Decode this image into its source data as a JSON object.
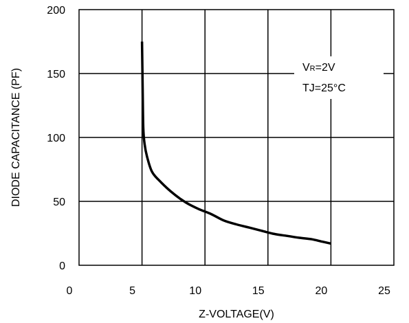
{
  "chart_data": {
    "type": "line",
    "xlabel": "Z-VOLTAGE(V)",
    "ylabel": "DIODE CAPACITANCE (PF)",
    "xlim": [
      0,
      25
    ],
    "ylim": [
      0,
      200
    ],
    "x_ticks": [
      0,
      5,
      10,
      15,
      20,
      25
    ],
    "y_ticks": [
      0,
      50,
      100,
      150,
      200
    ],
    "grid": true,
    "annotation": {
      "line1_main": "V",
      "line1_sub": "R",
      "line1_rest": "=2V",
      "line2": "TJ=25°C"
    },
    "series": [
      {
        "color": "#000000",
        "x": [
          5.0,
          5.05,
          5.1,
          5.2,
          5.4,
          5.8,
          6.5,
          7.5,
          8.5,
          9.5,
          10.5,
          11.5,
          12.5,
          13.5,
          14.5,
          15.5,
          16.5,
          17.5,
          18.5,
          19.3,
          20.0
        ],
        "y": [
          175,
          140,
          108,
          95,
          85,
          73,
          65,
          56,
          49,
          44,
          40,
          35,
          32,
          29.5,
          27,
          24.5,
          23,
          21.5,
          20.3,
          18.5,
          17
        ]
      }
    ]
  }
}
